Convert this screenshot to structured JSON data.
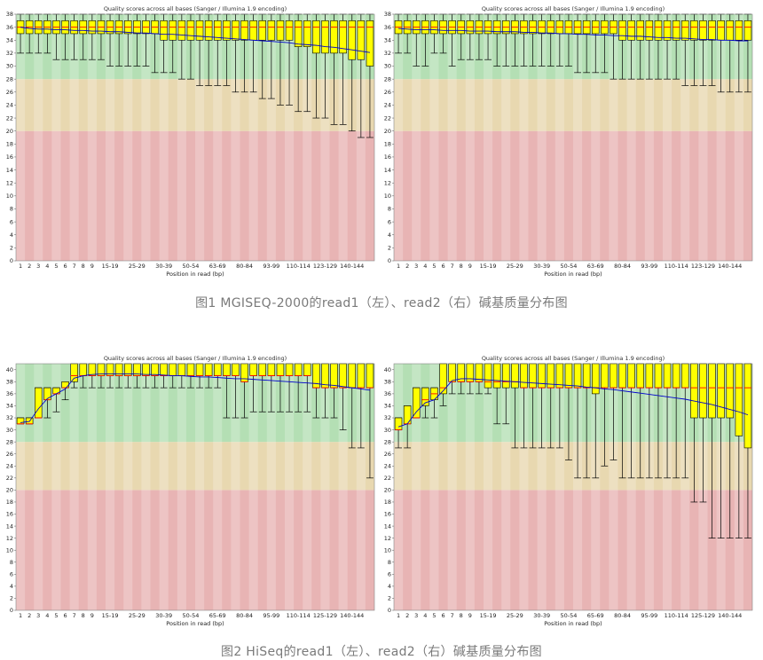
{
  "captions": {
    "fig1": "图1  MGISEQ-2000的read1（左）、read2（右）碱基质量分布图",
    "fig2": "图2  HiSeq的read1（左）、read2（右）碱基质量分布图"
  },
  "chart_data": [
    {
      "id": "fig1-read1",
      "type": "boxplot",
      "title": "Quality scores across all bases (Sanger / Illumina 1.9 encoding)",
      "xlabel": "Position in read (bp)",
      "ylim": [
        0,
        38
      ],
      "yticks": [
        0,
        2,
        4,
        6,
        8,
        10,
        12,
        14,
        16,
        18,
        20,
        22,
        24,
        26,
        28,
        30,
        32,
        34,
        36,
        38
      ],
      "xticks": [
        "1",
        "2",
        "3",
        "4",
        "5",
        "6",
        "7",
        "8",
        "9",
        "15-19",
        "25-29",
        "30-39",
        "50-54",
        "63-69",
        "80-84",
        "93-99",
        "110-114",
        "123-129",
        "140-144"
      ],
      "bands": {
        "good": [
          28,
          38
        ],
        "ok": [
          20,
          28
        ],
        "poor": [
          0,
          20
        ]
      },
      "colors": {
        "good": "#b4dfb4",
        "ok": "#e8d8b0",
        "poor": "#e8b4b4",
        "box": "#ffff00",
        "median": "#ff0000",
        "mean": "#0000cc"
      },
      "positions": 40,
      "boxes": {
        "q1": [
          35,
          35,
          35,
          35,
          35,
          35,
          35,
          35,
          35,
          35,
          35,
          35,
          35,
          35,
          35,
          35,
          34,
          34,
          34,
          34,
          34,
          34,
          34,
          34,
          34,
          34,
          34,
          34,
          34,
          34,
          34,
          33,
          33,
          32,
          32,
          32,
          32,
          31,
          31,
          30
        ],
        "q3": [
          37,
          37,
          37,
          37,
          37,
          37,
          37,
          37,
          37,
          37,
          37,
          37,
          37,
          37,
          37,
          37,
          37,
          37,
          37,
          37,
          37,
          37,
          37,
          37,
          37,
          37,
          37,
          37,
          37,
          37,
          37,
          37,
          37,
          37,
          37,
          37,
          37,
          37,
          37,
          37
        ],
        "median": [
          36,
          36,
          36,
          36,
          36,
          36,
          36,
          36,
          36,
          36,
          36,
          36,
          36,
          36,
          36,
          36,
          36,
          36,
          36,
          36,
          36,
          36,
          36,
          36,
          36,
          36,
          36,
          36,
          36,
          36,
          36,
          36,
          36,
          36,
          36,
          36,
          36,
          36,
          36,
          36
        ],
        "low": [
          32,
          32,
          32,
          32,
          31,
          31,
          31,
          31,
          31,
          31,
          30,
          30,
          30,
          30,
          30,
          29,
          29,
          29,
          28,
          28,
          27,
          27,
          27,
          27,
          26,
          26,
          26,
          25,
          25,
          24,
          24,
          23,
          23,
          22,
          22,
          21,
          21,
          20,
          19,
          19
        ],
        "high": [
          38,
          38,
          38,
          38,
          38,
          38,
          38,
          38,
          38,
          38,
          38,
          38,
          38,
          38,
          38,
          38,
          38,
          38,
          38,
          38,
          38,
          38,
          38,
          38,
          38,
          38,
          38,
          38,
          38,
          38,
          38,
          38,
          38,
          38,
          38,
          38,
          38,
          38,
          38,
          38
        ],
        "mean": [
          36,
          35.8,
          35.7,
          35.7,
          35.6,
          35.6,
          35.5,
          35.5,
          35.4,
          35.4,
          35.3,
          35.3,
          35.2,
          35.1,
          35.1,
          35.0,
          34.9,
          34.9,
          34.8,
          34.7,
          34.6,
          34.5,
          34.4,
          34.3,
          34.2,
          34.1,
          34.0,
          33.9,
          33.8,
          33.7,
          33.6,
          33.4,
          33.3,
          33.2,
          33.0,
          32.9,
          32.7,
          32.5,
          32.3,
          32.1
        ]
      }
    },
    {
      "id": "fig1-read2",
      "type": "boxplot",
      "title": "Quality scores across all bases (Sanger / Illumina 1.9 encoding)",
      "xlabel": "Position in read (bp)",
      "ylim": [
        0,
        38
      ],
      "yticks": [
        0,
        2,
        4,
        6,
        8,
        10,
        12,
        14,
        16,
        18,
        20,
        22,
        24,
        26,
        28,
        30,
        32,
        34,
        36,
        38
      ],
      "xticks": [
        "1",
        "2",
        "3",
        "4",
        "5",
        "6",
        "7",
        "8",
        "9",
        "15-19",
        "25-29",
        "30-39",
        "50-54",
        "63-69",
        "80-84",
        "93-99",
        "110-114",
        "123-129",
        "140-144"
      ],
      "bands": {
        "good": [
          28,
          38
        ],
        "ok": [
          20,
          28
        ],
        "poor": [
          0,
          20
        ]
      },
      "colors": {
        "good": "#b4dfb4",
        "ok": "#e8d8b0",
        "poor": "#e8b4b4",
        "box": "#ffff00",
        "median": "#ff0000",
        "mean": "#0000cc"
      },
      "positions": 40,
      "boxes": {
        "q1": [
          35,
          35,
          35,
          35,
          35,
          35,
          35,
          35,
          35,
          35,
          35,
          35,
          35,
          35,
          35,
          35,
          35,
          35,
          35,
          35,
          35,
          35,
          35,
          35,
          35,
          34,
          34,
          34,
          34,
          34,
          34,
          34,
          34,
          34,
          34,
          34,
          34,
          34,
          34,
          34
        ],
        "q3": [
          37,
          37,
          37,
          37,
          37,
          37,
          37,
          37,
          37,
          37,
          37,
          37,
          37,
          37,
          37,
          37,
          37,
          37,
          37,
          37,
          37,
          37,
          37,
          37,
          37,
          37,
          37,
          37,
          37,
          37,
          37,
          37,
          37,
          37,
          37,
          37,
          37,
          37,
          37,
          37
        ],
        "median": [
          36,
          36,
          36,
          36,
          36,
          36,
          36,
          36,
          36,
          36,
          36,
          36,
          36,
          36,
          36,
          36,
          36,
          36,
          36,
          36,
          36,
          36,
          36,
          36,
          36,
          36,
          36,
          36,
          36,
          36,
          36,
          36,
          36,
          36,
          36,
          36,
          36,
          36,
          36,
          36
        ],
        "low": [
          32,
          32,
          30,
          30,
          32,
          32,
          30,
          31,
          31,
          31,
          31,
          30,
          30,
          30,
          30,
          30,
          30,
          30,
          30,
          30,
          29,
          29,
          29,
          29,
          28,
          28,
          28,
          28,
          28,
          28,
          28,
          28,
          27,
          27,
          27,
          27,
          26,
          26,
          26,
          26
        ],
        "high": [
          38,
          38,
          38,
          38,
          38,
          38,
          38,
          38,
          38,
          38,
          38,
          38,
          38,
          38,
          38,
          38,
          38,
          38,
          38,
          38,
          38,
          38,
          38,
          38,
          38,
          38,
          38,
          38,
          38,
          38,
          38,
          38,
          38,
          38,
          38,
          38,
          38,
          38,
          38,
          38
        ],
        "mean": [
          35.8,
          35.7,
          35.6,
          35.6,
          35.6,
          35.5,
          35.5,
          35.5,
          35.4,
          35.4,
          35.4,
          35.3,
          35.3,
          35.3,
          35.2,
          35.2,
          35.1,
          35.1,
          35.0,
          35.0,
          34.9,
          34.9,
          34.8,
          34.8,
          34.7,
          34.7,
          34.6,
          34.6,
          34.5,
          34.4,
          34.4,
          34.3,
          34.3,
          34.2,
          34.1,
          34.1,
          34.0,
          34.0,
          33.9,
          33.9
        ]
      }
    },
    {
      "id": "fig2-read1",
      "type": "boxplot",
      "title": "Quality scores across all bases (Sanger / Illumina 1.9 encoding)",
      "xlabel": "Position in read (bp)",
      "ylim": [
        0,
        41
      ],
      "yticks": [
        0,
        2,
        4,
        6,
        8,
        10,
        12,
        14,
        16,
        18,
        20,
        22,
        24,
        26,
        28,
        30,
        32,
        34,
        36,
        38,
        40
      ],
      "xticks": [
        "1",
        "2",
        "3",
        "4",
        "5",
        "6",
        "7",
        "8",
        "9",
        "15-19",
        "25-29",
        "30-39",
        "50-54",
        "65-69",
        "80-84",
        "95-99",
        "110-114",
        "125-129",
        "140-144"
      ],
      "bands": {
        "good": [
          28,
          41
        ],
        "ok": [
          20,
          28
        ],
        "poor": [
          0,
          20
        ]
      },
      "colors": {
        "good": "#b4dfb4",
        "ok": "#e8d8b0",
        "poor": "#e8b4b4",
        "box": "#ffff00",
        "median": "#ff0000",
        "mean": "#0000cc"
      },
      "positions": 40,
      "boxes": {
        "q1": [
          31,
          31,
          32,
          35,
          36,
          37,
          38,
          39,
          39,
          39,
          39,
          39,
          39,
          39,
          39,
          39,
          39,
          39,
          39,
          39,
          39,
          39,
          39,
          39,
          39,
          38,
          39,
          39,
          39,
          39,
          39,
          39,
          39,
          37,
          37,
          37,
          37,
          37,
          37,
          37
        ],
        "q3": [
          32,
          32,
          37,
          37,
          37,
          38,
          41,
          41,
          41,
          41,
          41,
          41,
          41,
          41,
          41,
          41,
          41,
          41,
          41,
          41,
          41,
          41,
          41,
          41,
          41,
          41,
          41,
          41,
          41,
          41,
          41,
          41,
          41,
          41,
          41,
          41,
          41,
          41,
          41,
          41
        ],
        "median": [
          31,
          31,
          32,
          35,
          36,
          37,
          39,
          39,
          39,
          39,
          39,
          39,
          39,
          39,
          39,
          39,
          39,
          39,
          39,
          39,
          39,
          39,
          39,
          39,
          39,
          38,
          39,
          39,
          39,
          39,
          39,
          39,
          39,
          37,
          37,
          37,
          37,
          37,
          37,
          37
        ],
        "low": [
          31,
          31,
          32,
          32,
          33,
          35,
          37,
          37,
          37,
          37,
          37,
          37,
          37,
          37,
          37,
          37,
          37,
          37,
          37,
          37,
          37,
          37,
          37,
          32,
          32,
          32,
          33,
          33,
          33,
          33,
          33,
          33,
          33,
          32,
          32,
          32,
          30,
          27,
          27,
          22
        ],
        "high": [
          32,
          32,
          37,
          37,
          37,
          38,
          41,
          41,
          41,
          41,
          41,
          41,
          41,
          41,
          41,
          41,
          41,
          41,
          41,
          41,
          41,
          41,
          41,
          41,
          41,
          41,
          41,
          41,
          41,
          41,
          41,
          41,
          41,
          41,
          41,
          41,
          41,
          41,
          41,
          41
        ],
        "mean": [
          31.2,
          31.4,
          33.5,
          35.2,
          36.0,
          36.8,
          38.6,
          39.0,
          39.2,
          39.3,
          39.3,
          39.3,
          39.3,
          39.3,
          39.2,
          39.2,
          39.1,
          39.0,
          39.0,
          38.9,
          38.8,
          38.8,
          38.7,
          38.6,
          38.5,
          38.5,
          38.4,
          38.3,
          38.2,
          38.1,
          38.0,
          37.9,
          37.8,
          37.7,
          37.5,
          37.4,
          37.2,
          37.0,
          36.8,
          36.6
        ]
      }
    },
    {
      "id": "fig2-read2",
      "type": "boxplot",
      "title": "Quality scores across all bases (Sanger / Illumina 1.9 encoding)",
      "xlabel": "Position in read (bp)",
      "ylim": [
        0,
        41
      ],
      "yticks": [
        0,
        2,
        4,
        6,
        8,
        10,
        12,
        14,
        16,
        18,
        20,
        22,
        24,
        26,
        28,
        30,
        32,
        34,
        36,
        38,
        40
      ],
      "xticks": [
        "1",
        "2",
        "3",
        "4",
        "5",
        "6",
        "7",
        "8",
        "9",
        "15-19",
        "25-29",
        "30-39",
        "50-54",
        "65-69",
        "80-84",
        "95-99",
        "110-114",
        "125-129",
        "140-144"
      ],
      "bands": {
        "good": [
          28,
          41
        ],
        "ok": [
          20,
          28
        ],
        "poor": [
          0,
          20
        ]
      },
      "colors": {
        "good": "#b4dfb4",
        "ok": "#e8d8b0",
        "poor": "#e8b4b4",
        "box": "#ffff00",
        "median": "#ff0000",
        "mean": "#0000cc"
      },
      "positions": 40,
      "boxes": {
        "q1": [
          30,
          31,
          32,
          34,
          35,
          36,
          38,
          38,
          38,
          38,
          37,
          37,
          37,
          37,
          37,
          37,
          37,
          37,
          37,
          37,
          37,
          37,
          36,
          37,
          37,
          37,
          37,
          37,
          37,
          37,
          37,
          37,
          37,
          32,
          32,
          32,
          32,
          32,
          29,
          27
        ],
        "q3": [
          32,
          34,
          37,
          37,
          37,
          41,
          41,
          41,
          41,
          41,
          41,
          41,
          41,
          41,
          41,
          41,
          41,
          41,
          41,
          41,
          41,
          41,
          41,
          41,
          41,
          41,
          41,
          41,
          41,
          41,
          41,
          41,
          41,
          41,
          41,
          41,
          41,
          41,
          41,
          41
        ],
        "median": [
          30,
          31,
          32,
          35,
          36,
          37,
          38,
          38,
          38,
          38,
          38,
          38,
          38,
          38,
          37,
          37,
          37,
          37,
          37,
          37,
          37,
          37,
          37,
          37,
          37,
          37,
          37,
          37,
          37,
          37,
          37,
          37,
          37,
          37,
          37,
          37,
          37,
          37,
          37,
          37
        ],
        "low": [
          27,
          27,
          32,
          32,
          32,
          34,
          36,
          36,
          36,
          36,
          36,
          31,
          31,
          27,
          27,
          27,
          27,
          27,
          27,
          25,
          22,
          22,
          22,
          24,
          25,
          22,
          22,
          22,
          22,
          22,
          22,
          22,
          22,
          18,
          18,
          12,
          12,
          12,
          12,
          12
        ],
        "high": [
          32,
          34,
          37,
          37,
          37,
          41,
          41,
          41,
          41,
          41,
          41,
          41,
          41,
          41,
          41,
          41,
          41,
          41,
          41,
          41,
          41,
          41,
          41,
          41,
          41,
          41,
          41,
          41,
          41,
          41,
          41,
          41,
          41,
          41,
          41,
          41,
          41,
          41,
          41,
          41
        ],
        "mean": [
          30.5,
          31.0,
          33.0,
          34.5,
          35.0,
          36.5,
          38.2,
          38.5,
          38.5,
          38.4,
          38.3,
          38.2,
          38.1,
          38.0,
          37.9,
          37.8,
          37.7,
          37.6,
          37.5,
          37.4,
          37.3,
          37.1,
          37.0,
          36.8,
          36.7,
          36.5,
          36.3,
          36.1,
          35.9,
          35.7,
          35.5,
          35.3,
          35.1,
          34.8,
          34.5,
          34.2,
          33.8,
          33.4,
          33.0,
          32.5
        ]
      }
    }
  ]
}
